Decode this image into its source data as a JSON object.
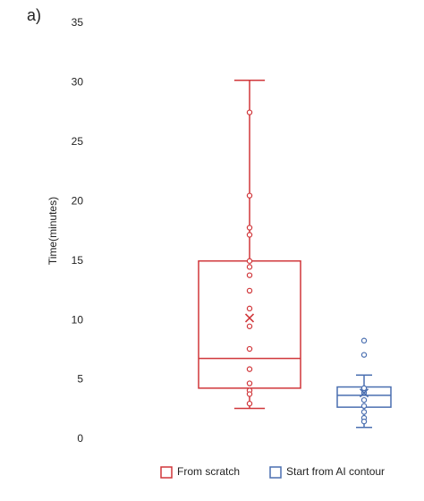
{
  "chart_data": {
    "type": "box",
    "panel_label": "a)",
    "ylabel": "Time(minutes)",
    "ylim": [
      0,
      35
    ],
    "yticks": [
      0,
      5,
      10,
      15,
      20,
      25,
      30,
      35
    ],
    "series": [
      {
        "name": "From scratch",
        "color": "#d0363a",
        "min": 2.6,
        "q1": 4.3,
        "median": 6.8,
        "q3": 15,
        "max": 30.2,
        "mean": 10.2,
        "points": [
          27.5,
          20.5,
          17.8,
          17.2,
          15,
          14.5,
          13.8,
          12.5,
          11,
          9.5,
          7.6,
          5.9,
          4.7,
          4.1,
          3.8,
          3.0
        ]
      },
      {
        "name": "Start from AI contour",
        "color": "#4a6fb0",
        "min": 1.0,
        "q1": 2.7,
        "median": 3.7,
        "q3": 4.4,
        "max": 5.4,
        "mean": 3.9,
        "points": [
          8.3,
          7.1,
          4.3,
          3.9,
          3.3,
          2.8,
          2.3,
          1.8,
          1.5
        ]
      }
    ]
  }
}
